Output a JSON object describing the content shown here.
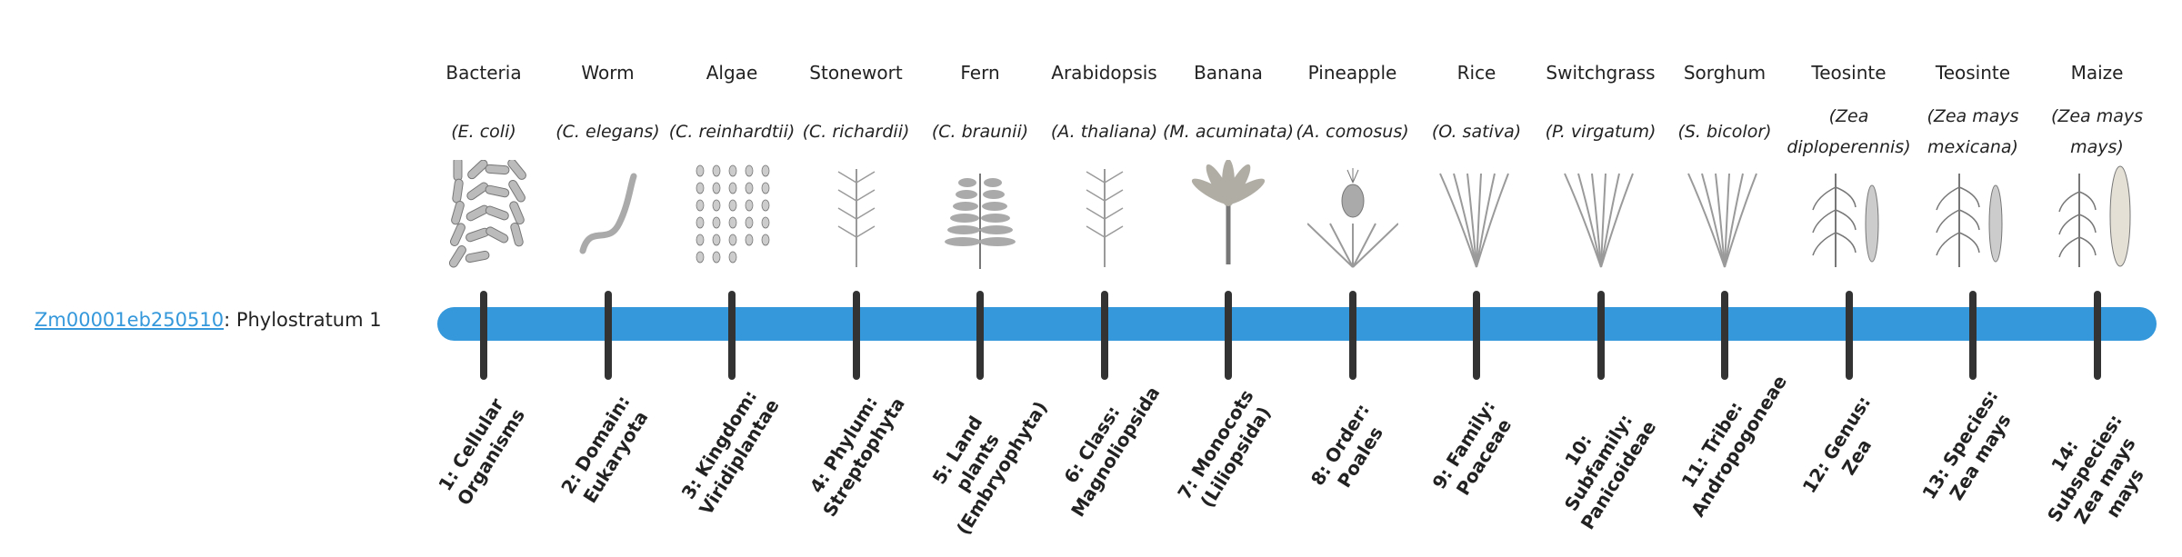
{
  "gene": {
    "id": "Zm00001eb250510",
    "suffix": ": Phylostratum 1"
  },
  "bar_color": "#3498db",
  "strata": [
    {
      "common": "Bacteria",
      "scientific": "(E. coli)",
      "rank": "1: Cellular Organisms",
      "illustration": "bacteria-illustration"
    },
    {
      "common": "Worm",
      "scientific": "(C. elegans)",
      "rank": "2: Domain: Eukaryota",
      "illustration": "worm-illustration"
    },
    {
      "common": "Algae",
      "scientific": "(C. reinhardtii)",
      "rank": "3: Kingdom: Viridiplantae",
      "illustration": "algae-illustration"
    },
    {
      "common": "Stonewort",
      "scientific": "(C. richardii)",
      "rank": "4: Phylum: Streptophyta",
      "illustration": "stonewort-illustration"
    },
    {
      "common": "Fern",
      "scientific": "(C. braunii)",
      "rank": "5: Land plants (Embryophyta)",
      "illustration": "fern-illustration"
    },
    {
      "common": "Arabidopsis",
      "scientific": "(A. thaliana)",
      "rank": "6: Class: Magnoliopsida",
      "illustration": "arabidopsis-illustration"
    },
    {
      "common": "Banana",
      "scientific": "(M. acuminata)",
      "rank": "7: Monocots (Liliopsida)",
      "illustration": "banana-illustration"
    },
    {
      "common": "Pineapple",
      "scientific": "(A. comosus)",
      "rank": "8: Order: Poales",
      "illustration": "pineapple-illustration"
    },
    {
      "common": "Rice",
      "scientific": "(O. sativa)",
      "rank": "9: Family: Poaceae",
      "illustration": "rice-illustration"
    },
    {
      "common": "Switchgrass",
      "scientific": "(P. virgatum)",
      "rank": "10: Subfamily: Panicoideae",
      "illustration": "switchgrass-illustration"
    },
    {
      "common": "Sorghum",
      "scientific": "(S. bicolor)",
      "rank": "11: Tribe: Andropogoneae",
      "illustration": "sorghum-illustration"
    },
    {
      "common": "Teosinte",
      "scientific": "(Zea diploperennis)",
      "rank": "12: Genus: Zea",
      "illustration": "teosinte-illustration"
    },
    {
      "common": "Teosinte",
      "scientific": "(Zea mays mexicana)",
      "rank": "13: Species: Zea mays",
      "illustration": "teosinte-mexicana-illustration"
    },
    {
      "common": "Maize",
      "scientific": "(Zea mays mays)",
      "rank": "14: Subspecies: Zea mays mays",
      "illustration": "maize-illustration"
    }
  ]
}
